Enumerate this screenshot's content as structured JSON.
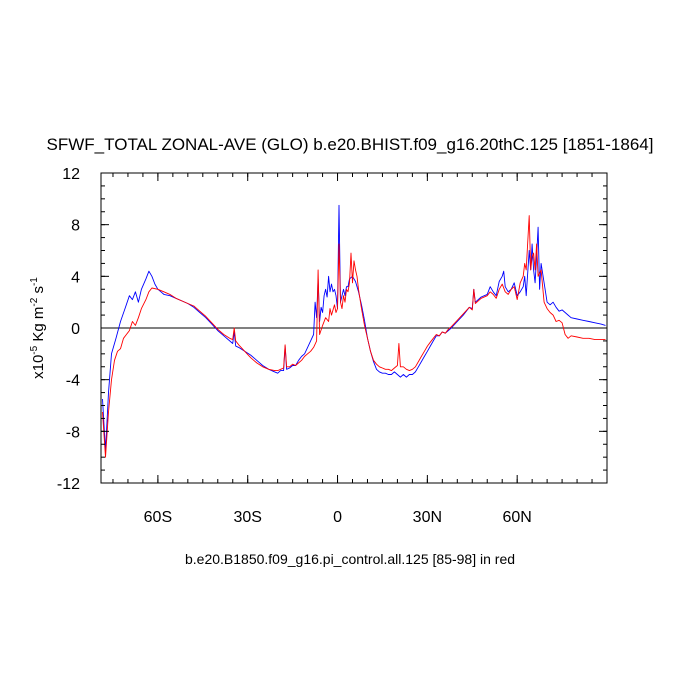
{
  "chart_data": {
    "type": "line",
    "title": "SFWF_TOTAL ZONAL-AVE (GLO) b.e20.BHIST.f09_g16.20thC.125 [1851-1864]",
    "ylabel_parts": {
      "prefix": "x10",
      "sup1": "-5",
      "mid": " Kg m",
      "sup2": "-2",
      "mid2": " s",
      "sup3": "-1"
    },
    "xlabel": "b.e20.B1850.f09_g16.pi_control.all.125 [85-98] in red",
    "xlim": [
      -79,
      90
    ],
    "ylim": [
      -12,
      12
    ],
    "x_ticks": [
      {
        "value": -60,
        "label": "60S"
      },
      {
        "value": -30,
        "label": "30S"
      },
      {
        "value": 0,
        "label": "0"
      },
      {
        "value": 30,
        "label": "30N"
      },
      {
        "value": 60,
        "label": "60N"
      }
    ],
    "x_minor_step": 5,
    "y_ticks": [
      {
        "value": 12,
        "label": "12"
      },
      {
        "value": 8,
        "label": "8"
      },
      {
        "value": 4,
        "label": "4"
      },
      {
        "value": 0,
        "label": "0"
      },
      {
        "value": -4,
        "label": "-4"
      },
      {
        "value": -8,
        "label": "-8"
      },
      {
        "value": -12,
        "label": "-12"
      }
    ],
    "y_minor_step": 1,
    "zero_line": true,
    "series": [
      {
        "color": "#0000ff",
        "points": [
          [
            -78.5,
            -5.5
          ],
          [
            -77.5,
            -9.5
          ],
          [
            -76.5,
            -5.0
          ],
          [
            -75.5,
            -2.0
          ],
          [
            -74,
            -0.8
          ],
          [
            -72.5,
            0.5
          ],
          [
            -71,
            1.5
          ],
          [
            -69.5,
            2.5
          ],
          [
            -68.5,
            2.2
          ],
          [
            -67.5,
            2.8
          ],
          [
            -66.5,
            2.0
          ],
          [
            -65.5,
            3.0
          ],
          [
            -64,
            3.8
          ],
          [
            -63,
            4.4
          ],
          [
            -62,
            4.0
          ],
          [
            -61,
            3.4
          ],
          [
            -60,
            3.0
          ],
          [
            -59,
            2.8
          ],
          [
            -58,
            2.6
          ],
          [
            -56,
            2.5
          ],
          [
            -54,
            2.3
          ],
          [
            -52,
            2.1
          ],
          [
            -50,
            1.9
          ],
          [
            -48,
            1.6
          ],
          [
            -46,
            1.2
          ],
          [
            -44,
            0.8
          ],
          [
            -42,
            0.3
          ],
          [
            -40,
            -0.2
          ],
          [
            -38,
            -0.6
          ],
          [
            -36,
            -1.0
          ],
          [
            -35,
            -1.2
          ],
          [
            -34.5,
            -0.3
          ],
          [
            -34,
            -1.4
          ],
          [
            -33,
            -1.5
          ],
          [
            -31,
            -1.8
          ],
          [
            -29,
            -2.1
          ],
          [
            -27,
            -2.5
          ],
          [
            -25,
            -2.9
          ],
          [
            -23,
            -3.2
          ],
          [
            -21,
            -3.4
          ],
          [
            -20,
            -3.5
          ],
          [
            -19,
            -3.3
          ],
          [
            -18,
            -3.3
          ],
          [
            -17.5,
            -1.4
          ],
          [
            -17,
            -3.2
          ],
          [
            -16,
            -3.1
          ],
          [
            -15,
            -2.9
          ],
          [
            -14,
            -2.9
          ],
          [
            -13,
            -2.5
          ],
          [
            -12,
            -2.2
          ],
          [
            -11,
            -2.0
          ],
          [
            -10,
            -1.5
          ],
          [
            -9,
            -1.0
          ],
          [
            -8,
            -0.5
          ],
          [
            -7.5,
            2.0
          ],
          [
            -7,
            0.8
          ],
          [
            -6.5,
            3.8
          ],
          [
            -6,
            0.5
          ],
          [
            -5.5,
            1.6
          ],
          [
            -5,
            1.2
          ],
          [
            -4.5,
            2.5
          ],
          [
            -4,
            3.0
          ],
          [
            -3.5,
            2.4
          ],
          [
            -3,
            4.0
          ],
          [
            -2.5,
            2.8
          ],
          [
            -2,
            3.4
          ],
          [
            -1.5,
            2.8
          ],
          [
            -1,
            3.0
          ],
          [
            -0.5,
            2.5
          ],
          [
            0,
            1.5
          ],
          [
            0.5,
            9.5
          ],
          [
            1,
            2.0
          ],
          [
            1.5,
            2.5
          ],
          [
            2,
            3.0
          ],
          [
            2.5,
            2.5
          ],
          [
            3,
            3.2
          ],
          [
            3.5,
            3.2
          ],
          [
            4,
            3.8
          ],
          [
            5,
            4.0
          ],
          [
            6,
            3.6
          ],
          [
            7,
            2.8
          ],
          [
            8,
            1.8
          ],
          [
            9,
            0.6
          ],
          [
            10,
            -0.8
          ],
          [
            11,
            -1.8
          ],
          [
            12,
            -2.6
          ],
          [
            13,
            -3.2
          ],
          [
            14,
            -3.4
          ],
          [
            15,
            -3.5
          ],
          [
            16,
            -3.5
          ],
          [
            17,
            -3.6
          ],
          [
            18,
            -3.6
          ],
          [
            19,
            -3.4
          ],
          [
            20,
            -3.6
          ],
          [
            21,
            -3.8
          ],
          [
            22,
            -3.6
          ],
          [
            23,
            -3.8
          ],
          [
            24,
            -3.6
          ],
          [
            25,
            -3.6
          ],
          [
            26,
            -3.4
          ],
          [
            27,
            -3.0
          ],
          [
            28,
            -2.6
          ],
          [
            29,
            -2.2
          ],
          [
            30,
            -1.8
          ],
          [
            31,
            -1.4
          ],
          [
            32,
            -1.0
          ],
          [
            33,
            -0.6
          ],
          [
            34,
            -0.6
          ],
          [
            35,
            -0.3
          ],
          [
            36,
            -0.4
          ],
          [
            37,
            -0.2
          ],
          [
            38,
            0.0
          ],
          [
            40,
            0.5
          ],
          [
            42,
            1.0
          ],
          [
            44,
            1.6
          ],
          [
            45,
            1.5
          ],
          [
            45.5,
            3.0
          ],
          [
            46,
            2.0
          ],
          [
            48,
            2.4
          ],
          [
            50,
            2.6
          ],
          [
            51,
            3.2
          ],
          [
            52,
            2.8
          ],
          [
            53,
            2.5
          ],
          [
            54,
            3.6
          ],
          [
            55,
            4.0
          ],
          [
            55.5,
            4.4
          ],
          [
            56,
            3.2
          ],
          [
            57,
            2.8
          ],
          [
            58,
            3.0
          ],
          [
            59,
            3.5
          ],
          [
            60,
            2.5
          ],
          [
            61,
            2.8
          ],
          [
            62,
            3.2
          ],
          [
            62.5,
            4.0
          ],
          [
            63,
            2.5
          ],
          [
            64,
            6.0
          ],
          [
            64.5,
            4.5
          ],
          [
            65,
            6.5
          ],
          [
            65.5,
            4.5
          ],
          [
            66,
            3.5
          ],
          [
            66.5,
            5.5
          ],
          [
            67,
            7.8
          ],
          [
            67.5,
            3.0
          ],
          [
            68,
            5.0
          ],
          [
            69,
            3.5
          ],
          [
            70,
            2.0
          ],
          [
            71,
            1.8
          ],
          [
            72,
            2.0
          ],
          [
            73,
            1.6
          ],
          [
            74,
            1.3
          ],
          [
            75,
            1.4
          ],
          [
            76,
            1.2
          ],
          [
            77,
            1.0
          ],
          [
            78,
            0.8
          ],
          [
            80,
            0.7
          ],
          [
            82,
            0.6
          ],
          [
            84,
            0.5
          ],
          [
            86,
            0.4
          ],
          [
            88,
            0.3
          ],
          [
            89.5,
            0.2
          ]
        ]
      },
      {
        "color": "#ff0000",
        "points": [
          [
            -78.5,
            -6.5
          ],
          [
            -77.5,
            -10.0
          ],
          [
            -76.5,
            -6.5
          ],
          [
            -75.5,
            -4.0
          ],
          [
            -74.5,
            -2.5
          ],
          [
            -73.5,
            -1.8
          ],
          [
            -72.5,
            -1.6
          ],
          [
            -71.5,
            -0.8
          ],
          [
            -70.5,
            -0.5
          ],
          [
            -69.5,
            -0.2
          ],
          [
            -68.5,
            0.5
          ],
          [
            -67.5,
            0.2
          ],
          [
            -66.5,
            0.8
          ],
          [
            -65.5,
            1.5
          ],
          [
            -64,
            2.2
          ],
          [
            -63,
            2.8
          ],
          [
            -62,
            3.1
          ],
          [
            -60,
            3.0
          ],
          [
            -58,
            2.8
          ],
          [
            -56,
            2.6
          ],
          [
            -54,
            2.3
          ],
          [
            -52,
            2.1
          ],
          [
            -50,
            1.9
          ],
          [
            -48,
            1.7
          ],
          [
            -46,
            1.3
          ],
          [
            -44,
            0.9
          ],
          [
            -42,
            0.4
          ],
          [
            -40,
            -0.1
          ],
          [
            -38,
            -0.5
          ],
          [
            -36,
            -0.8
          ],
          [
            -35,
            -0.9
          ],
          [
            -34.5,
            0.0
          ],
          [
            -34,
            -1.0
          ],
          [
            -33,
            -1.3
          ],
          [
            -31,
            -1.8
          ],
          [
            -29,
            -2.3
          ],
          [
            -27,
            -2.7
          ],
          [
            -25,
            -3.0
          ],
          [
            -23,
            -3.2
          ],
          [
            -21,
            -3.3
          ],
          [
            -20,
            -3.3
          ],
          [
            -19,
            -3.2
          ],
          [
            -18,
            -3.1
          ],
          [
            -17.5,
            -1.3
          ],
          [
            -17,
            -3.0
          ],
          [
            -16,
            -3.0
          ],
          [
            -15,
            -2.8
          ],
          [
            -14,
            -2.9
          ],
          [
            -13,
            -2.7
          ],
          [
            -12,
            -2.5
          ],
          [
            -11,
            -2.2
          ],
          [
            -10,
            -2.0
          ],
          [
            -9,
            -1.8
          ],
          [
            -8,
            -1.5
          ],
          [
            -7,
            -1.0
          ],
          [
            -6.5,
            4.5
          ],
          [
            -6,
            -0.5
          ],
          [
            -5,
            0.2
          ],
          [
            -4,
            0.8
          ],
          [
            -3,
            0.5
          ],
          [
            -2.5,
            1.5
          ],
          [
            -2,
            1.0
          ],
          [
            -1,
            1.8
          ],
          [
            -0.5,
            1.2
          ],
          [
            0,
            1.5
          ],
          [
            0.5,
            6.5
          ],
          [
            1,
            2.0
          ],
          [
            1.5,
            1.5
          ],
          [
            2,
            2.5
          ],
          [
            2.5,
            2.0
          ],
          [
            3,
            3.0
          ],
          [
            3.5,
            2.8
          ],
          [
            4,
            3.5
          ],
          [
            4.5,
            5.8
          ],
          [
            5,
            3.5
          ],
          [
            5.5,
            5.2
          ],
          [
            6,
            4.5
          ],
          [
            6.5,
            4.0
          ],
          [
            7,
            3.0
          ],
          [
            8,
            1.5
          ],
          [
            9,
            0.2
          ],
          [
            10,
            -0.8
          ],
          [
            11,
            -1.8
          ],
          [
            12,
            -2.5
          ],
          [
            13,
            -2.8
          ],
          [
            14,
            -3.0
          ],
          [
            15,
            -3.1
          ],
          [
            16,
            -3.2
          ],
          [
            17,
            -3.2
          ],
          [
            18,
            -3.3
          ],
          [
            19,
            -3.1
          ],
          [
            20,
            -2.9
          ],
          [
            20.5,
            -1.2
          ],
          [
            21,
            -3.0
          ],
          [
            22,
            -3.0
          ],
          [
            23,
            -3.2
          ],
          [
            24,
            -3.3
          ],
          [
            25,
            -3.2
          ],
          [
            26,
            -3.0
          ],
          [
            27,
            -2.6
          ],
          [
            28,
            -2.2
          ],
          [
            29,
            -1.8
          ],
          [
            30,
            -1.4
          ],
          [
            31,
            -1.1
          ],
          [
            32,
            -0.8
          ],
          [
            33,
            -0.5
          ],
          [
            34,
            -0.6
          ],
          [
            35,
            -0.3
          ],
          [
            36,
            -0.4
          ],
          [
            37,
            -0.1
          ],
          [
            38,
            0.1
          ],
          [
            40,
            0.6
          ],
          [
            42,
            1.1
          ],
          [
            44,
            1.6
          ],
          [
            45,
            1.4
          ],
          [
            45.5,
            3.0
          ],
          [
            46,
            1.9
          ],
          [
            48,
            2.3
          ],
          [
            50,
            2.5
          ],
          [
            51,
            2.8
          ],
          [
            52,
            2.6
          ],
          [
            53,
            2.3
          ],
          [
            54,
            3.0
          ],
          [
            55,
            3.4
          ],
          [
            56,
            2.8
          ],
          [
            57,
            2.6
          ],
          [
            58,
            3.0
          ],
          [
            59,
            3.2
          ],
          [
            60,
            2.2
          ],
          [
            61,
            3.5
          ],
          [
            62,
            4.0
          ],
          [
            62.5,
            5.0
          ],
          [
            63,
            4.5
          ],
          [
            64,
            8.7
          ],
          [
            64.5,
            4.5
          ],
          [
            65,
            5.5
          ],
          [
            65.5,
            5.8
          ],
          [
            66,
            4.5
          ],
          [
            66.5,
            6.5
          ],
          [
            67,
            4.0
          ],
          [
            68,
            4.5
          ],
          [
            69,
            2.0
          ],
          [
            70,
            1.5
          ],
          [
            71,
            1.2
          ],
          [
            72,
            1.0
          ],
          [
            73,
            0.5
          ],
          [
            74,
            0.6
          ],
          [
            75,
            0.4
          ],
          [
            76,
            -0.5
          ],
          [
            77,
            -0.8
          ],
          [
            78,
            -0.6
          ],
          [
            80,
            -0.7
          ],
          [
            82,
            -0.8
          ],
          [
            84,
            -0.8
          ],
          [
            86,
            -0.9
          ],
          [
            88,
            -0.9
          ],
          [
            89.5,
            -0.9
          ]
        ]
      }
    ]
  }
}
